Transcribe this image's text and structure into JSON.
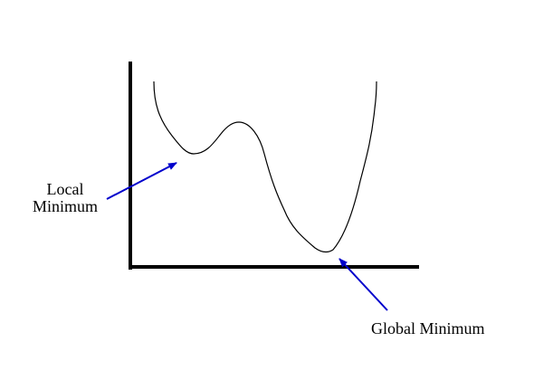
{
  "labels": {
    "local_line1": "Local",
    "local_line2": "Minimum",
    "global": "Global Minimum"
  },
  "colors": {
    "axis": "#000000",
    "curve": "#000000",
    "arrow": "#0000cc",
    "text": "#000000"
  }
}
